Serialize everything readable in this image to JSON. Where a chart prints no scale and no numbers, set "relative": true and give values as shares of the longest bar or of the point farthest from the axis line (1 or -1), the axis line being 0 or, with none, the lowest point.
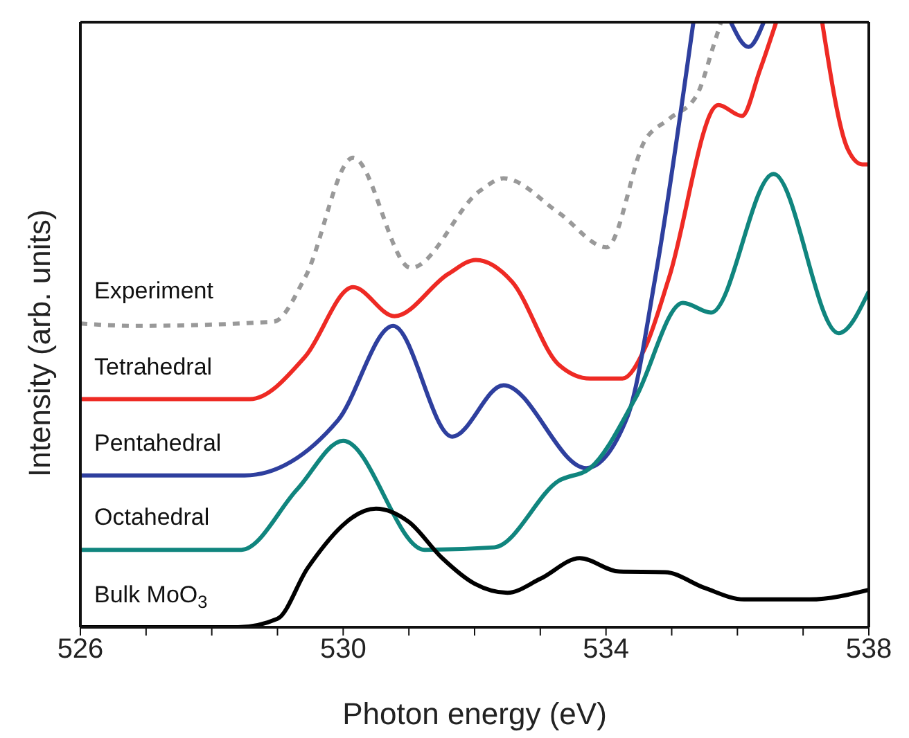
{
  "chart_data": {
    "type": "line",
    "relative": true,
    "xlabel": "Photon energy (eV)",
    "ylabel": "Intensity (arb. units)",
    "xlim": [
      526,
      538
    ],
    "xticks": [
      526,
      {
        "value": 527,
        "label": null
      },
      {
        "value": 528,
        "label": null
      },
      {
        "value": 529,
        "label": null
      },
      530,
      {
        "value": 531,
        "label": null
      },
      {
        "value": 532,
        "label": null
      },
      {
        "value": 533,
        "label": null
      },
      534,
      {
        "value": 535,
        "label": null
      },
      {
        "value": 536,
        "label": null
      },
      {
        "value": 537,
        "label": null
      },
      538
    ],
    "legend": false,
    "series": [
      {
        "name": "Experiment",
        "color": "#999999",
        "line_style": "dashed",
        "x": [
          526,
          526.84,
          528.94,
          529.42,
          530.15,
          531.03,
          532.08,
          532.44,
          533.28,
          534.01,
          534.6,
          534.96,
          535.38,
          535.65,
          535.75
        ],
        "values": [
          0.502,
          0.498,
          0.505,
          0.578,
          0.776,
          0.594,
          0.721,
          0.742,
          0.685,
          0.628,
          0.806,
          0.84,
          0.879,
          0.966,
          1
        ]
      },
      {
        "name": "Tetrahedral",
        "color": "#ee2a24",
        "line_style": "solid",
        "x": [
          526,
          528.58,
          529.42,
          530.15,
          530.78,
          531.6,
          532.02,
          532.57,
          533.28,
          533.76,
          534.25,
          534.6,
          534.96,
          535.71,
          536.07,
          536.34,
          536.59,
          536.9,
          537.29,
          537.68,
          537.9,
          538
        ],
        "values": [
          0.377,
          0.377,
          0.447,
          0.562,
          0.514,
          0.584,
          0.607,
          0.571,
          0.434,
          0.411,
          0.411,
          0.463,
          0.578,
          0.863,
          0.845,
          0.92,
          1,
          null,
          1,
          0.79,
          0.765,
          0.765
        ]
      },
      {
        "name": "Pentahedral",
        "color": "#2e3f9e",
        "line_style": "solid",
        "x": [
          526,
          528.5,
          529.92,
          530.76,
          531.66,
          532.44,
          533.7,
          534.33,
          534.75,
          535.33,
          535.6,
          535.9,
          536.17,
          536.4
        ],
        "values": [
          0.251,
          0.251,
          0.342,
          0.498,
          0.315,
          0.4,
          0.263,
          0.349,
          0.578,
          1,
          null,
          1,
          0.959,
          1
        ]
      },
      {
        "name": "Octahedral",
        "color": "#10857e",
        "line_style": "solid",
        "x": [
          526,
          528.45,
          529.3,
          530.0,
          531.24,
          532.3,
          533.28,
          533.76,
          534.45,
          535.17,
          535.6,
          536.55,
          537.54,
          538
        ],
        "values": [
          0.128,
          0.128,
          0.228,
          0.308,
          0.128,
          0.132,
          0.242,
          0.263,
          0.379,
          0.536,
          0.52,
          0.749,
          0.486,
          0.555
        ]
      },
      {
        "name": "Bulk MoO$_{3}$",
        "color": "#000000",
        "line_style": "solid",
        "x": [
          526,
          528.4,
          529.0,
          529.46,
          530.5,
          531.0,
          531.5,
          532.0,
          532.5,
          533.0,
          533.6,
          534.2,
          534.9,
          535.5,
          536.1,
          537.1,
          538
        ],
        "values": [
          0,
          0,
          0.014,
          0.098,
          0.196,
          0.174,
          0.115,
          0.072,
          0.057,
          0.08,
          0.114,
          0.092,
          0.091,
          0.065,
          0.046,
          0.046,
          0.062
        ]
      }
    ]
  }
}
